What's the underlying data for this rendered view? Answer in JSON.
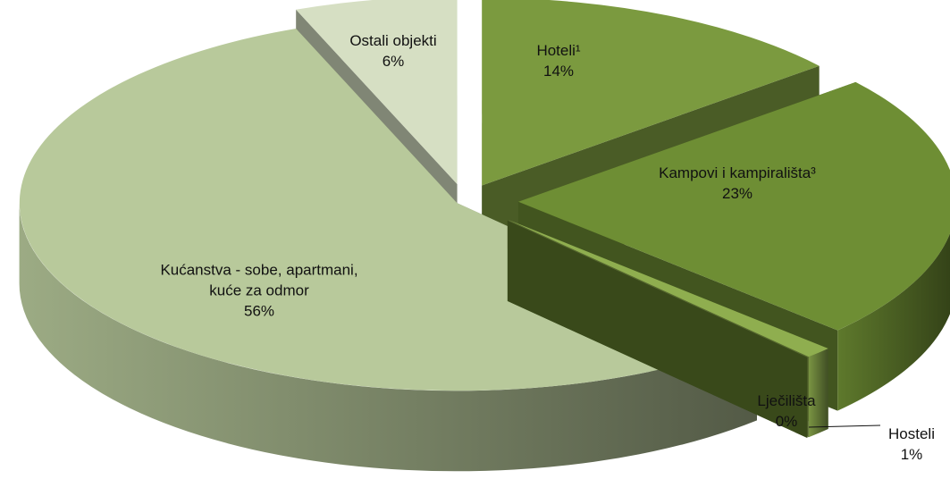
{
  "chart_data": {
    "type": "pie",
    "categories": [
      "Hoteli¹",
      "Kampovi i kampirališta³",
      "Hosteli",
      "Lječilišta",
      "Kućanstva - sobe, apartmani, kuće za odmor",
      "Ostali objekti"
    ],
    "values": [
      14,
      23,
      1,
      0,
      56,
      6
    ],
    "value_labels": [
      "14%",
      "23%",
      "1%",
      "0%",
      "56%",
      "6%"
    ],
    "colors": [
      "#7b9a3f",
      "#6e8e34",
      "#8fae4f",
      "#5f7a2c",
      "#b8c99b",
      "#d6dfc3"
    ]
  }
}
